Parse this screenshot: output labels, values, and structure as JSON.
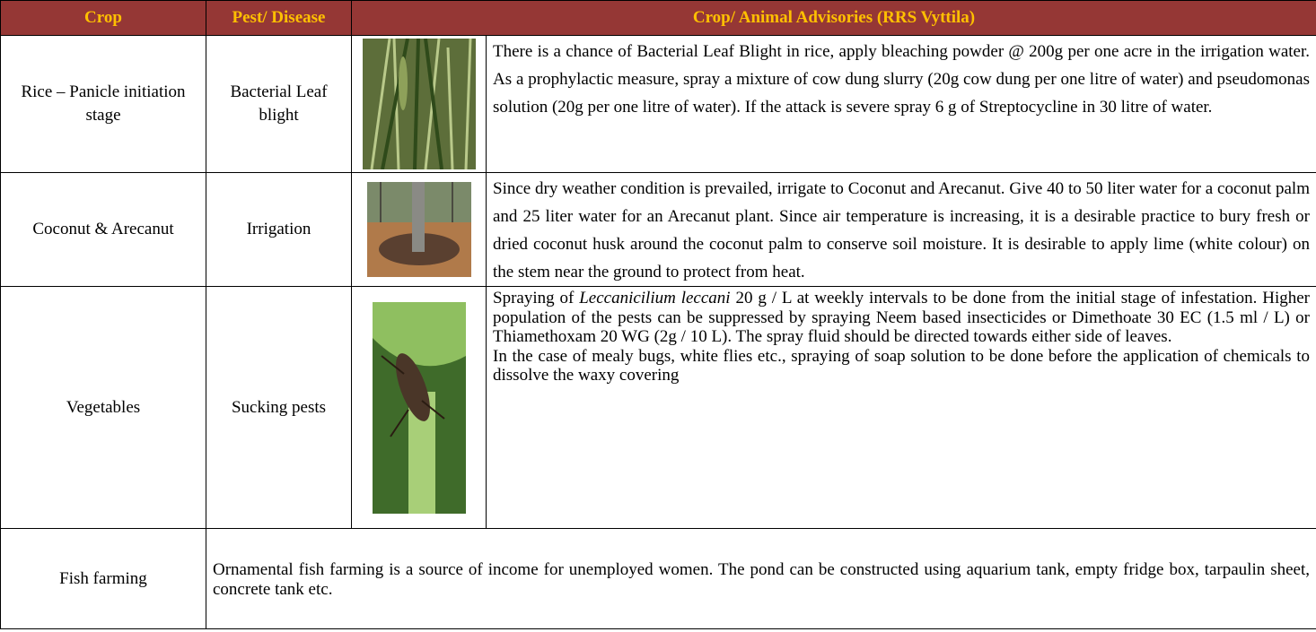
{
  "table": {
    "header": [
      "Crop",
      "Pest/ Disease",
      "Crop/ Animal Advisories  (RRS Vyttila)"
    ],
    "rows": [
      {
        "crop": "Rice – Panicle initiation stage",
        "pest": "Bacterial Leaf blight",
        "advisory": "There is a chance of Bacterial Leaf Blight in rice, apply bleaching powder @ 200g per one acre in the irrigation water. As a prophylactic measure, spray a mixture of cow dung slurry (20g cow dung per one litre of water) and pseudomonas solution (20g per one litre of water). If the attack is severe spray 6 g of Streptocycline in 30 litre of water."
      },
      {
        "crop": "Coconut & Arecanut",
        "pest": "Irrigation",
        "advisory": "Since dry weather condition is prevailed, irrigate to Coconut and Arecanut. Give 40 to 50 liter water for a coconut palm and 25 liter water for an Arecanut plant.  Since air temperature is increasing, it is a desirable practice to bury fresh or dried coconut husk around the coconut palm to conserve soil moisture. It is desirable to apply lime (white colour) on the stem near the ground to protect from heat."
      },
      {
        "crop": "Vegetables",
        "pest": "Sucking pests",
        "advisory_before": "Spraying of ",
        "advisory_italic": "Leccanicilium leccani",
        "advisory_after": " 20 g / L at weekly intervals to be done from the initial stage of infestation. Higher population of the pests can be suppressed by spraying Neem based insecticides or Dimethoate 30 EC (1.5 ml / L) or Thiamethoxam 20 WG (2g / 10 L). The spray fluid should be directed towards either side of leaves.",
        "advisory_note": "In the case of mealy bugs, white flies etc., spraying of soap solution to be done before the application of chemicals to dissolve the waxy covering"
      },
      {
        "crop": "Fish farming",
        "advisory": "Ornamental fish farming is a source of income for unemployed women. The pond can be constructed using aquarium tank, empty fridge box, tarpaulin sheet, concrete tank etc."
      }
    ]
  }
}
